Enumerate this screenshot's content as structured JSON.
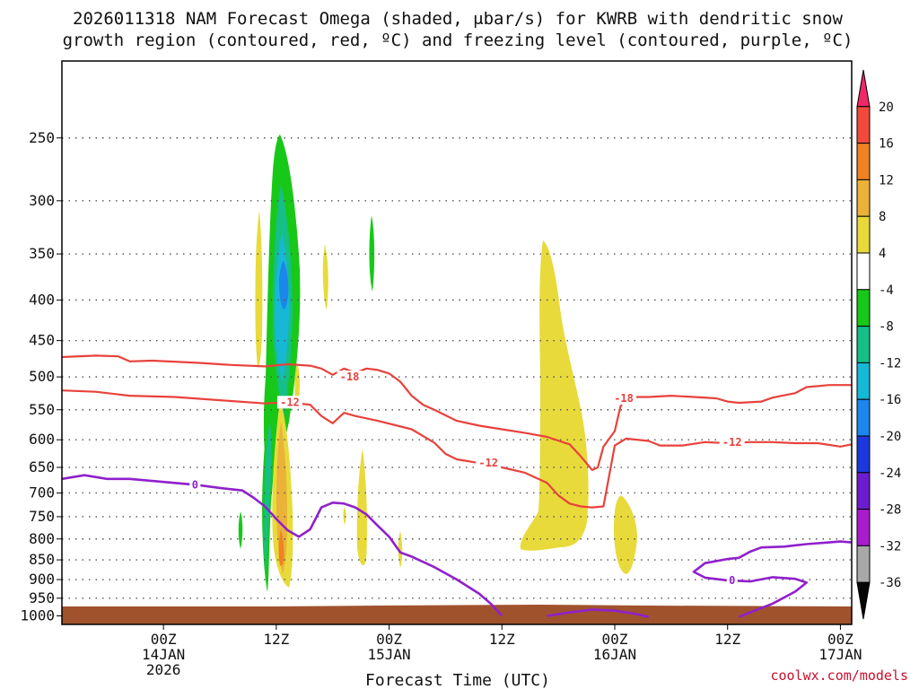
{
  "chart_data": {
    "type": "heatmap",
    "title_lines": [
      "2026011318 NAM Forecast Omega (shaded, μbar/s) for KWRB with dendritic snow",
      "growth region (contoured, red, ºC) and freezing level (contoured, purple, ºC)"
    ],
    "xlabel": "Forecast Time (UTC)",
    "credit": "coolwx.com/models",
    "x_range_hours": [
      -9,
      61
    ],
    "y_range_hpa": [
      200,
      1025
    ],
    "y_ticks": [
      250,
      300,
      350,
      400,
      450,
      500,
      550,
      600,
      650,
      700,
      750,
      800,
      850,
      900,
      950,
      1000
    ],
    "x_ticks": [
      {
        "h": 0,
        "l1": "00Z",
        "l2": "14JAN",
        "l3": "2026"
      },
      {
        "h": 10,
        "l1": "12Z",
        "l2": "",
        "l3": ""
      },
      {
        "h": 20,
        "l1": "00Z",
        "l2": "15JAN",
        "l3": ""
      },
      {
        "h": 30,
        "l1": "12Z",
        "l2": "",
        "l3": ""
      },
      {
        "h": 40,
        "l1": "00Z",
        "l2": "16JAN",
        "l3": ""
      },
      {
        "h": 50,
        "l1": "12Z",
        "l2": "",
        "l3": ""
      },
      {
        "h": 60,
        "l1": "00Z",
        "l2": "17JAN",
        "l3": ""
      }
    ],
    "colorbar": {
      "labels": [
        "20",
        "16",
        "12",
        "8",
        "4",
        "-4",
        "-8",
        "-12",
        "-16",
        "-20",
        "-24",
        "-28",
        "-32",
        "-36"
      ],
      "colors": [
        "#f02868",
        "#f04a3c",
        "#ee8224",
        "#eab238",
        "#e8da3a",
        "#ffffff",
        "#18c818",
        "#16be88",
        "#16b8d6",
        "#1c86ec",
        "#1c38dc",
        "#6c1ccc",
        "#a81ccc",
        "#a8a8a8",
        "#050505"
      ]
    },
    "contours": [
      {
        "name": "-18",
        "color": "#e8423c",
        "points": [
          [
            -9,
            472
          ],
          [
            -6,
            470
          ],
          [
            -4,
            471
          ],
          [
            -3,
            478
          ],
          [
            -1,
            477
          ],
          [
            3,
            480
          ],
          [
            6,
            483
          ],
          [
            9,
            485
          ],
          [
            11,
            482
          ],
          [
            13,
            484
          ],
          [
            14,
            488
          ],
          [
            15,
            497
          ],
          [
            16,
            488
          ],
          [
            17,
            494
          ],
          [
            18,
            488
          ],
          [
            19,
            490
          ],
          [
            20,
            495
          ],
          [
            21,
            507
          ],
          [
            22,
            528
          ],
          [
            23,
            542
          ],
          [
            24,
            550
          ],
          [
            26,
            568
          ],
          [
            28,
            576
          ],
          [
            30,
            582
          ],
          [
            32,
            588
          ],
          [
            34,
            595
          ],
          [
            36,
            608
          ],
          [
            37,
            630
          ],
          [
            38,
            655
          ],
          [
            38.5,
            650
          ],
          [
            39,
            612
          ],
          [
            40,
            585
          ],
          [
            40.5,
            545
          ],
          [
            41,
            530
          ],
          [
            43,
            530
          ],
          [
            45,
            528
          ],
          [
            47,
            530
          ],
          [
            49,
            532
          ],
          [
            50,
            537
          ],
          [
            51,
            539
          ],
          [
            53,
            537
          ],
          [
            54,
            531
          ],
          [
            56,
            524
          ],
          [
            57,
            515
          ],
          [
            59,
            512
          ],
          [
            61,
            512
          ]
        ],
        "labels": [
          {
            "h": 16.5,
            "p": 500,
            "t": "-18"
          },
          {
            "h": 40.8,
            "p": 532,
            "t": "-18"
          }
        ]
      },
      {
        "name": "-12",
        "color": "#e8423c",
        "points": [
          [
            -9,
            520
          ],
          [
            -6,
            522
          ],
          [
            -3,
            528
          ],
          [
            1,
            530
          ],
          [
            5,
            535
          ],
          [
            9,
            540
          ],
          [
            11,
            538
          ],
          [
            13,
            542
          ],
          [
            14,
            560
          ],
          [
            15,
            572
          ],
          [
            16,
            555
          ],
          [
            17,
            560
          ],
          [
            19,
            568
          ],
          [
            22,
            582
          ],
          [
            24,
            605
          ],
          [
            25,
            625
          ],
          [
            26,
            635
          ],
          [
            28,
            642
          ],
          [
            30,
            650
          ],
          [
            32,
            660
          ],
          [
            34,
            680
          ],
          [
            35,
            705
          ],
          [
            36,
            722
          ],
          [
            37,
            728
          ],
          [
            38,
            730
          ],
          [
            39,
            728
          ],
          [
            40,
            610
          ],
          [
            41,
            598
          ],
          [
            43,
            602
          ],
          [
            44,
            610
          ],
          [
            46,
            610
          ],
          [
            48,
            604
          ],
          [
            50,
            606
          ],
          [
            52,
            604
          ],
          [
            54,
            604
          ],
          [
            56,
            606
          ],
          [
            58,
            606
          ],
          [
            60,
            612
          ],
          [
            61,
            608
          ]
        ],
        "labels": [
          {
            "h": 11.2,
            "p": 538,
            "t": "-12"
          },
          {
            "h": 28.8,
            "p": 642,
            "t": "-12"
          },
          {
            "h": 50.4,
            "p": 604,
            "t": "-12"
          }
        ]
      },
      {
        "name": "0",
        "color": "#9020cc",
        "points": [
          [
            -9,
            672
          ],
          [
            -7,
            665
          ],
          [
            -5,
            672
          ],
          [
            -3,
            672
          ],
          [
            1,
            680
          ],
          [
            3,
            684
          ],
          [
            5,
            690
          ],
          [
            7,
            695
          ],
          [
            8,
            710
          ],
          [
            9,
            728
          ],
          [
            10,
            755
          ],
          [
            11,
            780
          ],
          [
            12,
            795
          ],
          [
            13,
            778
          ],
          [
            14,
            730
          ],
          [
            15,
            720
          ],
          [
            16,
            722
          ],
          [
            17,
            730
          ],
          [
            18,
            745
          ],
          [
            19,
            770
          ],
          [
            20,
            795
          ],
          [
            21,
            832
          ],
          [
            22,
            842
          ],
          [
            24,
            868
          ],
          [
            26,
            900
          ],
          [
            28,
            938
          ],
          [
            29,
            965
          ],
          [
            30,
            1000
          ]
        ],
        "labels": [
          {
            "h": 2.8,
            "p": 684,
            "t": "0"
          }
        ]
      },
      {
        "name": "0",
        "color": "#9020cc",
        "points": [
          [
            34,
            1000
          ],
          [
            36,
            990
          ],
          [
            38,
            982
          ],
          [
            40,
            985
          ],
          [
            42,
            995
          ],
          [
            43,
            1003
          ]
        ],
        "labels": []
      },
      {
        "name": "0",
        "color": "#9020cc",
        "points": [
          [
            51,
            1003
          ],
          [
            52,
            990
          ],
          [
            54,
            965
          ],
          [
            56,
            932
          ],
          [
            57,
            908
          ],
          [
            56,
            898
          ],
          [
            54,
            894
          ],
          [
            52,
            905
          ],
          [
            50,
            902
          ],
          [
            48,
            895
          ],
          [
            47,
            880
          ],
          [
            48,
            858
          ],
          [
            50,
            848
          ],
          [
            51,
            845
          ],
          [
            52,
            830
          ],
          [
            53,
            820
          ],
          [
            55,
            818
          ],
          [
            57,
            812
          ],
          [
            59,
            808
          ],
          [
            60,
            806
          ],
          [
            61,
            808
          ]
        ],
        "labels": [
          {
            "h": 50.4,
            "p": 902,
            "t": "0"
          }
        ]
      }
    ]
  }
}
